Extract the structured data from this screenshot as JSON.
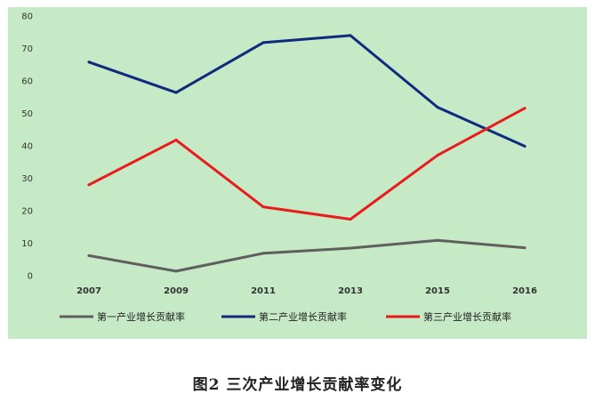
{
  "chart_data": {
    "type": "line",
    "title": "",
    "xlabel": "",
    "ylabel": "",
    "categories": [
      "2007",
      "2009",
      "2011",
      "2013",
      "2015",
      "2016"
    ],
    "ylim": [
      0,
      80
    ],
    "yticks": [
      0,
      10,
      20,
      30,
      40,
      50,
      60,
      70,
      80
    ],
    "grid": false,
    "legend_position": "bottom",
    "series": [
      {
        "name": "第一产业增长贡献率",
        "color": "#5f5f5f",
        "values": [
          6.2,
          1.4,
          6.9,
          8.5,
          10.9,
          8.6
        ]
      },
      {
        "name": "第二产业增长贡献率",
        "color": "#102a7e",
        "values": [
          65.8,
          56.4,
          71.8,
          74.0,
          51.9,
          39.9
        ]
      },
      {
        "name": "第三产业增长贡献率",
        "color": "#e81c1c",
        "values": [
          28.0,
          41.8,
          21.2,
          17.4,
          37.1,
          51.6
        ]
      }
    ]
  },
  "caption": "图2  三次产业增长贡献率变化"
}
